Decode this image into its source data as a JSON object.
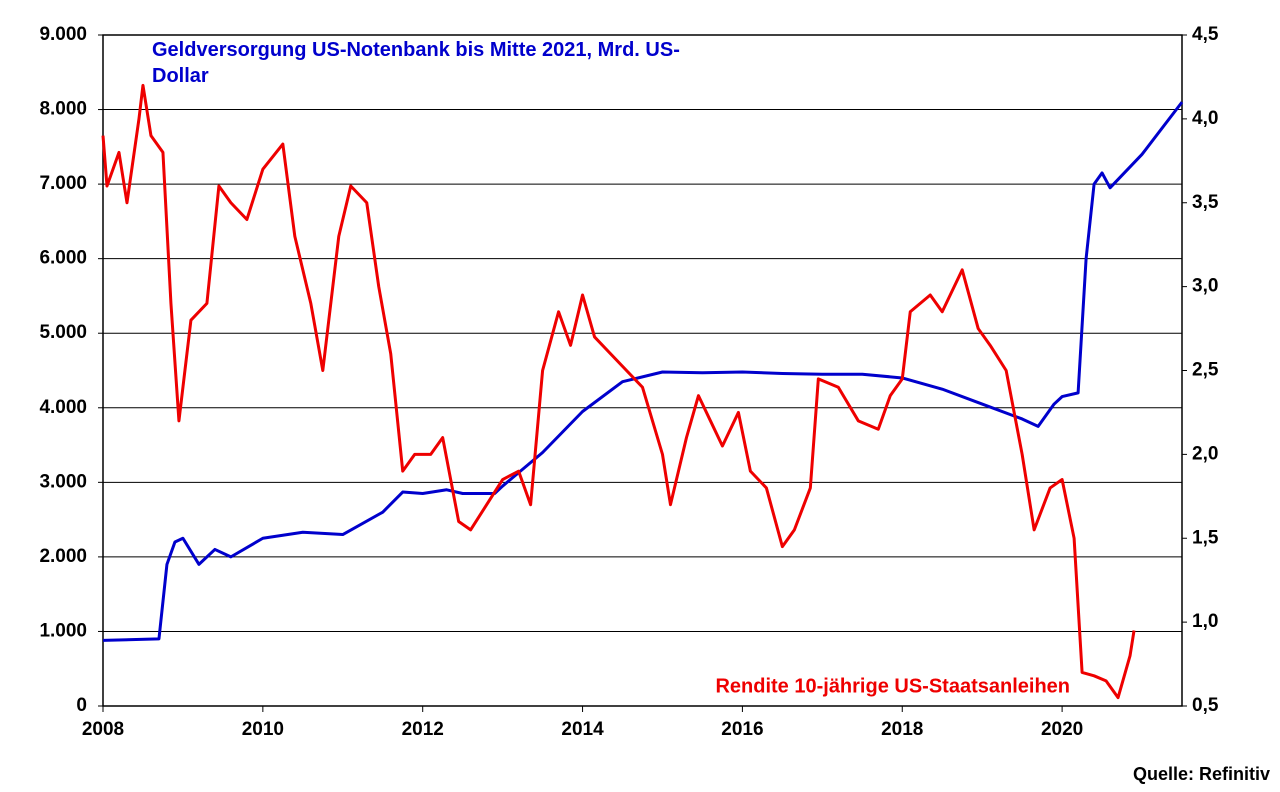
{
  "chart_data": {
    "type": "line",
    "xlim": [
      2008,
      2021.5
    ],
    "xticks": [
      2008,
      2010,
      2012,
      2014,
      2016,
      2018,
      2020
    ],
    "ylim": [
      0,
      9000
    ],
    "yticks": [
      {
        "value": 0,
        "label": "0"
      },
      {
        "value": 1000,
        "label": "1.000"
      },
      {
        "value": 2000,
        "label": "2.000"
      },
      {
        "value": 3000,
        "label": "3.000"
      },
      {
        "value": 4000,
        "label": "4.000"
      },
      {
        "value": 5000,
        "label": "5.000"
      },
      {
        "value": 6000,
        "label": "6.000"
      },
      {
        "value": 7000,
        "label": "7.000"
      },
      {
        "value": 8000,
        "label": "8.000"
      },
      {
        "value": 9000,
        "label": "9.000"
      }
    ],
    "y2lim": [
      0.5,
      4.5
    ],
    "y2ticks": [
      {
        "value": 0.5,
        "label": "0,5"
      },
      {
        "value": 1.0,
        "label": "1,0"
      },
      {
        "value": 1.5,
        "label": "1,5"
      },
      {
        "value": 2.0,
        "label": "2,0"
      },
      {
        "value": 2.5,
        "label": "2,5"
      },
      {
        "value": 3.0,
        "label": "3,0"
      },
      {
        "value": 3.5,
        "label": "3,5"
      },
      {
        "value": 4.0,
        "label": "4,0"
      },
      {
        "value": 4.5,
        "label": "4,5"
      }
    ],
    "grid": true,
    "source": "Quelle: Refinitiv",
    "series": [
      {
        "name": "Geldversorgung US-Notenbank bis Mitte 2021, Mrd. US-Dollar",
        "color": "#0000cc",
        "axis": "y",
        "x": [
          2008.0,
          2008.7,
          2008.8,
          2008.9,
          2009.0,
          2009.2,
          2009.4,
          2009.6,
          2010.0,
          2010.5,
          2011.0,
          2011.5,
          2011.75,
          2012.0,
          2012.3,
          2012.5,
          2012.9,
          2013.0,
          2013.5,
          2014.0,
          2014.5,
          2015.0,
          2015.5,
          2016.0,
          2016.5,
          2017.0,
          2017.5,
          2018.0,
          2018.5,
          2019.0,
          2019.5,
          2019.7,
          2019.9,
          2020.0,
          2020.2,
          2020.3,
          2020.4,
          2020.5,
          2020.6,
          2021.0,
          2021.5
        ],
        "values": [
          880,
          900,
          1900,
          2200,
          2250,
          1900,
          2100,
          2000,
          2250,
          2330,
          2300,
          2600,
          2870,
          2850,
          2900,
          2850,
          2850,
          2950,
          3400,
          3950,
          4350,
          4480,
          4470,
          4480,
          4460,
          4450,
          4450,
          4400,
          4250,
          4050,
          3850,
          3750,
          4050,
          4150,
          4200,
          6000,
          7000,
          7150,
          6950,
          7400,
          8100
        ]
      },
      {
        "name": "Rendite 10-jährige US-Staatsanleihen",
        "color": "#ee0000",
        "axis": "y2",
        "x": [
          2008.0,
          2008.05,
          2008.2,
          2008.3,
          2008.45,
          2008.5,
          2008.6,
          2008.75,
          2008.85,
          2008.95,
          2009.1,
          2009.3,
          2009.45,
          2009.6,
          2009.8,
          2010.0,
          2010.25,
          2010.4,
          2010.6,
          2010.75,
          2010.95,
          2011.1,
          2011.3,
          2011.45,
          2011.6,
          2011.75,
          2011.9,
          2012.1,
          2012.25,
          2012.45,
          2012.6,
          2012.8,
          2013.0,
          2013.2,
          2013.35,
          2013.5,
          2013.7,
          2013.85,
          2014.0,
          2014.15,
          2014.35,
          2014.55,
          2014.75,
          2015.0,
          2015.1,
          2015.3,
          2015.45,
          2015.6,
          2015.75,
          2015.95,
          2016.1,
          2016.3,
          2016.5,
          2016.65,
          2016.85,
          2016.95,
          2017.2,
          2017.45,
          2017.7,
          2017.85,
          2018.0,
          2018.1,
          2018.35,
          2018.5,
          2018.75,
          2018.95,
          2019.1,
          2019.3,
          2019.5,
          2019.65,
          2019.85,
          2020.0,
          2020.15,
          2020.25,
          2020.4,
          2020.55,
          2020.7,
          2020.85,
          2020.9
        ],
        "values": [
          3.9,
          3.6,
          3.8,
          3.5,
          4.0,
          4.2,
          3.9,
          3.8,
          2.9,
          2.2,
          2.8,
          2.9,
          3.6,
          3.5,
          3.4,
          3.7,
          3.85,
          3.3,
          2.9,
          2.5,
          3.3,
          3.6,
          3.5,
          3.0,
          2.6,
          1.9,
          2.0,
          2.0,
          2.1,
          1.6,
          1.55,
          1.7,
          1.85,
          1.9,
          1.7,
          2.5,
          2.85,
          2.65,
          2.95,
          2.7,
          2.6,
          2.5,
          2.4,
          2.0,
          1.7,
          2.1,
          2.35,
          2.2,
          2.05,
          2.25,
          1.9,
          1.8,
          1.45,
          1.55,
          1.8,
          2.45,
          2.4,
          2.2,
          2.15,
          2.35,
          2.45,
          2.85,
          2.95,
          2.85,
          3.1,
          2.75,
          2.65,
          2.5,
          2.0,
          1.55,
          1.8,
          1.85,
          1.5,
          0.7,
          0.68,
          0.65,
          0.55,
          0.8,
          0.95
        ]
      }
    ]
  }
}
